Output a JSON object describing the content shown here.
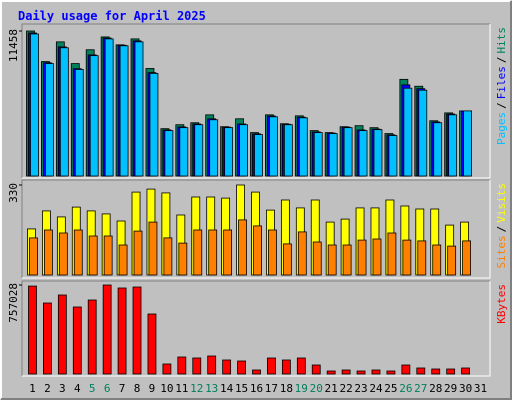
{
  "title": "Daily usage for April 2025",
  "legend_separator": "/",
  "chart_data": [
    {
      "type": "bar",
      "ylim": [
        0,
        11458
      ],
      "yticks": [
        11458
      ],
      "series": [
        {
          "name": "Pages",
          "color": "#00c0ff",
          "values": [
            11224,
            8886,
            10133,
            8418,
            9509,
            10834,
            10289,
            10600,
            8106,
            3585,
            3819,
            4053,
            4443,
            3819,
            4053,
            3274,
            4677,
            4053,
            4599,
            3430,
            3352,
            3819,
            3585,
            3663,
            3196,
            6937,
            6781,
            4209,
            4833,
            5144,
            null
          ]
        },
        {
          "name": "Files",
          "color": "#0000ff",
          "values": [
            11300,
            8950,
            10200,
            8480,
            9570,
            10900,
            10330,
            10680,
            8170,
            3640,
            3880,
            4110,
            4520,
            3860,
            4110,
            3330,
            4740,
            4090,
            4650,
            3480,
            3390,
            3860,
            3640,
            3710,
            3250,
            7200,
            6900,
            4270,
            4900,
            5144,
            null
          ]
        },
        {
          "name": "Hits",
          "color": "#00805c",
          "values": [
            11458,
            9042,
            10600,
            8886,
            9977,
            10990,
            10366,
            10834,
            8496,
            3741,
            4053,
            4209,
            4833,
            3897,
            4521,
            3430,
            4833,
            4131,
            4755,
            3585,
            3430,
            3897,
            3975,
            3819,
            3352,
            7638,
            7093,
            4365,
            4988,
            5144,
            null
          ]
        }
      ]
    },
    {
      "type": "bar",
      "ylim": [
        0,
        330
      ],
      "yticks": [
        330
      ],
      "series": [
        {
          "name": "Sites",
          "color": "#ff8000",
          "values": [
            136,
            165,
            154,
            165,
            143,
            143,
            110,
            161,
            194,
            136,
            117,
            165,
            165,
            165,
            202,
            180,
            165,
            114,
            158,
            121,
            110,
            110,
            128,
            132,
            154,
            128,
            125,
            110,
            106,
            125,
            null
          ]
        },
        {
          "name": "Visits",
          "color": "#ffff00",
          "values": [
            169,
            235,
            213,
            249,
            235,
            224,
            198,
            304,
            315,
            301,
            220,
            286,
            286,
            282,
            330,
            304,
            238,
            275,
            246,
            275,
            194,
            205,
            246,
            246,
            275,
            253,
            242,
            242,
            183,
            194,
            null
          ]
        }
      ]
    },
    {
      "type": "bar",
      "ylim": [
        0,
        757028
      ],
      "yticks": [
        757028
      ],
      "categories": [
        "1",
        "2",
        "3",
        "4",
        "5",
        "6",
        "7",
        "8",
        "9",
        "10",
        "11",
        "12",
        "13",
        "14",
        "15",
        "16",
        "17",
        "18",
        "19",
        "20",
        "21",
        "22",
        "23",
        "24",
        "25",
        "26",
        "27",
        "28",
        "29",
        "30",
        "31"
      ],
      "category_colors": [
        "#000000",
        "#000000",
        "#000000",
        "#000000",
        "#00805c",
        "#00805c",
        "#000000",
        "#000000",
        "#000000",
        "#000000",
        "#000000",
        "#00805c",
        "#00805c",
        "#000000",
        "#000000",
        "#000000",
        "#000000",
        "#000000",
        "#00805c",
        "#00805c",
        "#000000",
        "#000000",
        "#000000",
        "#000000",
        "#000000",
        "#00805c",
        "#00805c",
        "#000000",
        "#000000",
        "#000000",
        "#000000"
      ],
      "series": [
        {
          "name": "KBytes",
          "color": "#ff0000",
          "values": [
            748000,
            603920,
            671970,
            569900,
            629440,
            757028,
            731500,
            740000,
            510350,
            85060,
            144600,
            136100,
            153100,
            119100,
            110600,
            34020,
            136100,
            119100,
            136100,
            76550,
            25520,
            34020,
            25520,
            34020,
            25520,
            76550,
            51040,
            42530,
            42530,
            51040,
            null
          ]
        }
      ]
    }
  ]
}
